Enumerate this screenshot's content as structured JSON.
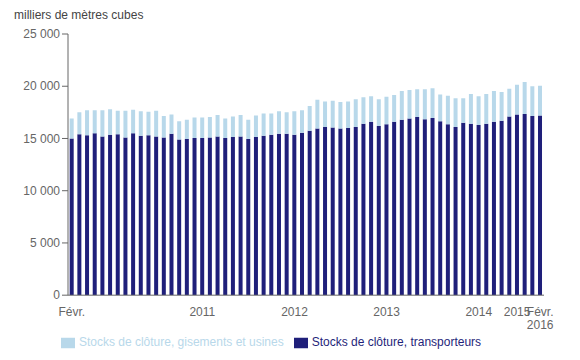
{
  "chart_data": {
    "type": "bar",
    "stacked": true,
    "ylabel": "milliers de mètres cubes",
    "categories": [
      "Févr.",
      null,
      null,
      null,
      null,
      null,
      null,
      null,
      null,
      null,
      null,
      null,
      null,
      null,
      null,
      null,
      null,
      "2011",
      null,
      null,
      null,
      null,
      null,
      null,
      null,
      null,
      null,
      null,
      null,
      "2012",
      null,
      null,
      null,
      null,
      null,
      null,
      null,
      null,
      null,
      null,
      null,
      "2013",
      null,
      null,
      null,
      null,
      null,
      null,
      null,
      null,
      null,
      null,
      null,
      "2014",
      null,
      null,
      null,
      null,
      "2015",
      null,
      null,
      "Févr.\n2016"
    ],
    "series": [
      {
        "name": "Stocks de clôture, transporteurs",
        "color": "#1f1f7a",
        "values": [
          15000,
          15400,
          15300,
          15500,
          15200,
          15350,
          15400,
          15100,
          15500,
          15250,
          15300,
          15200,
          15100,
          15450,
          14900,
          14950,
          15050,
          15050,
          15100,
          15200,
          15050,
          15150,
          15200,
          14950,
          15150,
          15250,
          15350,
          15450,
          15450,
          15350,
          15550,
          15750,
          15950,
          16100,
          16050,
          15950,
          16000,
          16100,
          16400,
          16600,
          16200,
          16350,
          16600,
          16800,
          16900,
          17050,
          16850,
          16950,
          16650,
          16350,
          16100,
          16500,
          16400,
          16300,
          16400,
          16600,
          16700,
          17100,
          17300,
          17350,
          17150,
          17200
        ]
      },
      {
        "name": "Stocks de clôture, gisements et usines",
        "color": "#b8d8ea",
        "values": [
          1900,
          2100,
          2400,
          2200,
          2500,
          2450,
          2250,
          2550,
          2250,
          2350,
          2250,
          2450,
          2050,
          1850,
          1750,
          1850,
          1950,
          1950,
          1950,
          2050,
          1850,
          1950,
          2050,
          1850,
          2050,
          2150,
          2050,
          2150,
          2050,
          2250,
          2150,
          2350,
          2750,
          2450,
          2550,
          2550,
          2550,
          2650,
          2550,
          2450,
          2550,
          2650,
          2550,
          2750,
          2750,
          2650,
          2850,
          2850,
          2550,
          2750,
          2750,
          2350,
          2850,
          2750,
          2850,
          2950,
          2750,
          2650,
          2850,
          3050,
          2850,
          2850
        ]
      }
    ],
    "ylim": [
      0,
      25000
    ],
    "yticks": [
      0,
      {
        "value": 5000,
        "label": "5 000"
      },
      {
        "value": 10000,
        "label": "10 000"
      },
      {
        "value": 15000,
        "label": "15 000"
      },
      {
        "value": 20000,
        "label": "20 000"
      },
      {
        "value": 25000,
        "label": "25 000"
      }
    ],
    "grid": false,
    "legend": "bottom"
  }
}
